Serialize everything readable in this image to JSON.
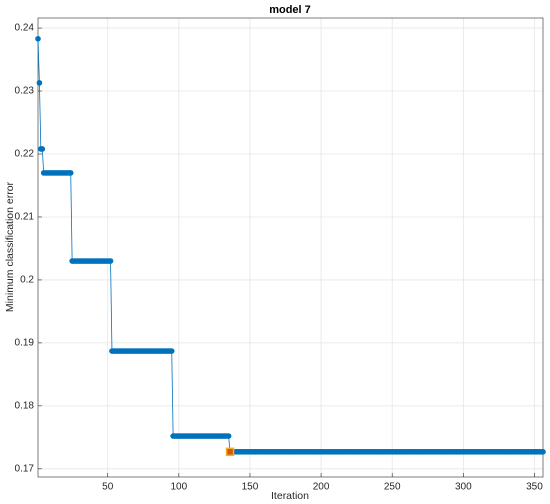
{
  "chart_data": {
    "type": "line",
    "title": "model 7",
    "x_label": "Iteration",
    "y_label": "Minimum classification error",
    "x": [
      1,
      2,
      3,
      4,
      5,
      6,
      7,
      8,
      9,
      10,
      11,
      12,
      13,
      14,
      15,
      16,
      17,
      18,
      19,
      20,
      21,
      22,
      23,
      24,
      25,
      26,
      27,
      28,
      29,
      30,
      31,
      32,
      33,
      34,
      35,
      36,
      37,
      38,
      39,
      40,
      41,
      42,
      43,
      44,
      45,
      46,
      47,
      48,
      49,
      50,
      51,
      52,
      53,
      54,
      55,
      56,
      57,
      58,
      59,
      60,
      61,
      62,
      63,
      64,
      65,
      66,
      67,
      68,
      69,
      70,
      71,
      72,
      73,
      74,
      75,
      76,
      77,
      78,
      79,
      80,
      81,
      82,
      83,
      84,
      85,
      86,
      87,
      88,
      89,
      90,
      91,
      92,
      93,
      94,
      95,
      96,
      97,
      98,
      99,
      100,
      101,
      102,
      103,
      104,
      105,
      106,
      107,
      108,
      109,
      110,
      111,
      112,
      113,
      114,
      115,
      116,
      117,
      118,
      119,
      120,
      121,
      122,
      123,
      124,
      125,
      126,
      127,
      128,
      129,
      130,
      131,
      132,
      133,
      134,
      135,
      136,
      137,
      138,
      139,
      140,
      141,
      142,
      143,
      144,
      145,
      146,
      147,
      148,
      149,
      150,
      151,
      152,
      153,
      154,
      155,
      156,
      157,
      158,
      159,
      160,
      161,
      162,
      163,
      164,
      165,
      166,
      167,
      168,
      169,
      170,
      171,
      172,
      173,
      174,
      175,
      176,
      177,
      178,
      179,
      180,
      181,
      182,
      183,
      184,
      185,
      186,
      187,
      188,
      189,
      190,
      191,
      192,
      193,
      194,
      195,
      196,
      197,
      198,
      199,
      200,
      201,
      202,
      203,
      204,
      205,
      206,
      207,
      208,
      209,
      210,
      211,
      212,
      213,
      214,
      215,
      216,
      217,
      218,
      219,
      220,
      221,
      222,
      223,
      224,
      225,
      226,
      227,
      228,
      229,
      230,
      231,
      232,
      233,
      234,
      235,
      236,
      237,
      238,
      239,
      240,
      241,
      242,
      243,
      244,
      245,
      246,
      247,
      248,
      249,
      250,
      251,
      252,
      253,
      254,
      255,
      256,
      257,
      258,
      259,
      260,
      261,
      262,
      263,
      264,
      265,
      266,
      267,
      268,
      269,
      270,
      271,
      272,
      273,
      274,
      275,
      276,
      277,
      278,
      279,
      280,
      281,
      282,
      283,
      284,
      285,
      286,
      287,
      288,
      289,
      290,
      291,
      292,
      293,
      294,
      295,
      296,
      297,
      298,
      299,
      300,
      301,
      302,
      303,
      304,
      305,
      306,
      307,
      308,
      309,
      310,
      311,
      312,
      313,
      314,
      315,
      316,
      317,
      318,
      319,
      320,
      321,
      322,
      323,
      324,
      325,
      326,
      327,
      328,
      329,
      330,
      331,
      332,
      333,
      334,
      335,
      336,
      337,
      338,
      339,
      340,
      341,
      342,
      343,
      344,
      345,
      346,
      347,
      348,
      349,
      350,
      351,
      352,
      353,
      354,
      355,
      356
    ],
    "values": [
      0.2383,
      0.2313,
      0.2208,
      0.2208,
      0.217,
      0.217,
      0.217,
      0.217,
      0.217,
      0.217,
      0.217,
      0.217,
      0.217,
      0.217,
      0.217,
      0.217,
      0.217,
      0.217,
      0.217,
      0.217,
      0.217,
      0.217,
      0.217,
      0.217,
      0.203,
      0.203,
      0.203,
      0.203,
      0.203,
      0.203,
      0.203,
      0.203,
      0.203,
      0.203,
      0.203,
      0.203,
      0.203,
      0.203,
      0.203,
      0.203,
      0.203,
      0.203,
      0.203,
      0.203,
      0.203,
      0.203,
      0.203,
      0.203,
      0.203,
      0.203,
      0.203,
      0.203,
      0.1887,
      0.1887,
      0.1887,
      0.1887,
      0.1887,
      0.1887,
      0.1887,
      0.1887,
      0.1887,
      0.1887,
      0.1887,
      0.1887,
      0.1887,
      0.1887,
      0.1887,
      0.1887,
      0.1887,
      0.1887,
      0.1887,
      0.1887,
      0.1887,
      0.1887,
      0.1887,
      0.1887,
      0.1887,
      0.1887,
      0.1887,
      0.1887,
      0.1887,
      0.1887,
      0.1887,
      0.1887,
      0.1887,
      0.1887,
      0.1887,
      0.1887,
      0.1887,
      0.1887,
      0.1887,
      0.1887,
      0.1887,
      0.1887,
      0.1887,
      0.1752,
      0.1752,
      0.1752,
      0.1752,
      0.1752,
      0.1752,
      0.1752,
      0.1752,
      0.1752,
      0.1752,
      0.1752,
      0.1752,
      0.1752,
      0.1752,
      0.1752,
      0.1752,
      0.1752,
      0.1752,
      0.1752,
      0.1752,
      0.1752,
      0.1752,
      0.1752,
      0.1752,
      0.1752,
      0.1752,
      0.1752,
      0.1752,
      0.1752,
      0.1752,
      0.1752,
      0.1752,
      0.1752,
      0.1752,
      0.1752,
      0.1752,
      0.1752,
      0.1752,
      0.1752,
      0.1752,
      0.1727,
      0.1727,
      0.1727,
      0.1727,
      0.1727,
      0.1727,
      0.1727,
      0.1727,
      0.1727,
      0.1727,
      0.1727,
      0.1727,
      0.1727,
      0.1727,
      0.1727,
      0.1727,
      0.1727,
      0.1727,
      0.1727,
      0.1727,
      0.1727,
      0.1727,
      0.1727,
      0.1727,
      0.1727,
      0.1727,
      0.1727,
      0.1727,
      0.1727,
      0.1727,
      0.1727,
      0.1727,
      0.1727,
      0.1727,
      0.1727,
      0.1727,
      0.1727,
      0.1727,
      0.1727,
      0.1727,
      0.1727,
      0.1727,
      0.1727,
      0.1727,
      0.1727,
      0.1727,
      0.1727,
      0.1727,
      0.1727,
      0.1727,
      0.1727,
      0.1727,
      0.1727,
      0.1727,
      0.1727,
      0.1727,
      0.1727,
      0.1727,
      0.1727,
      0.1727,
      0.1727,
      0.1727,
      0.1727,
      0.1727,
      0.1727,
      0.1727,
      0.1727,
      0.1727,
      0.1727,
      0.1727,
      0.1727,
      0.1727,
      0.1727,
      0.1727,
      0.1727,
      0.1727,
      0.1727,
      0.1727,
      0.1727,
      0.1727,
      0.1727,
      0.1727,
      0.1727,
      0.1727,
      0.1727,
      0.1727,
      0.1727,
      0.1727,
      0.1727,
      0.1727,
      0.1727,
      0.1727,
      0.1727,
      0.1727,
      0.1727,
      0.1727,
      0.1727,
      0.1727,
      0.1727,
      0.1727,
      0.1727,
      0.1727,
      0.1727,
      0.1727,
      0.1727,
      0.1727,
      0.1727,
      0.1727,
      0.1727,
      0.1727,
      0.1727,
      0.1727,
      0.1727,
      0.1727,
      0.1727,
      0.1727,
      0.1727,
      0.1727,
      0.1727,
      0.1727,
      0.1727,
      0.1727,
      0.1727,
      0.1727,
      0.1727,
      0.1727,
      0.1727,
      0.1727,
      0.1727,
      0.1727,
      0.1727,
      0.1727,
      0.1727,
      0.1727,
      0.1727,
      0.1727,
      0.1727,
      0.1727,
      0.1727,
      0.1727,
      0.1727,
      0.1727,
      0.1727,
      0.1727,
      0.1727,
      0.1727,
      0.1727,
      0.1727,
      0.1727,
      0.1727,
      0.1727,
      0.1727,
      0.1727,
      0.1727,
      0.1727,
      0.1727,
      0.1727,
      0.1727,
      0.1727,
      0.1727,
      0.1727,
      0.1727,
      0.1727,
      0.1727,
      0.1727,
      0.1727,
      0.1727,
      0.1727,
      0.1727,
      0.1727,
      0.1727,
      0.1727,
      0.1727,
      0.1727,
      0.1727,
      0.1727,
      0.1727,
      0.1727,
      0.1727,
      0.1727,
      0.1727,
      0.1727,
      0.1727,
      0.1727,
      0.1727,
      0.1727,
      0.1727,
      0.1727,
      0.1727,
      0.1727,
      0.1727,
      0.1727,
      0.1727,
      0.1727,
      0.1727,
      0.1727,
      0.1727,
      0.1727,
      0.1727,
      0.1727,
      0.1727,
      0.1727,
      0.1727,
      0.1727,
      0.1727,
      0.1727,
      0.1727,
      0.1727,
      0.1727,
      0.1727,
      0.1727,
      0.1727,
      0.1727,
      0.1727,
      0.1727,
      0.1727,
      0.1727,
      0.1727,
      0.1727,
      0.1727,
      0.1727
    ],
    "color": "#0072bd",
    "highlight": {
      "x": 136,
      "value": 0.1727,
      "color": "#d95319"
    },
    "xlim": [
      1,
      356
    ],
    "ylim": [
      0.1687,
      0.2416
    ],
    "xticks": [
      50,
      100,
      150,
      200,
      250,
      300,
      350
    ],
    "yticks": [
      0.17,
      0.18,
      0.19,
      0.2,
      0.21,
      0.22,
      0.23,
      0.24
    ],
    "grid": true
  }
}
